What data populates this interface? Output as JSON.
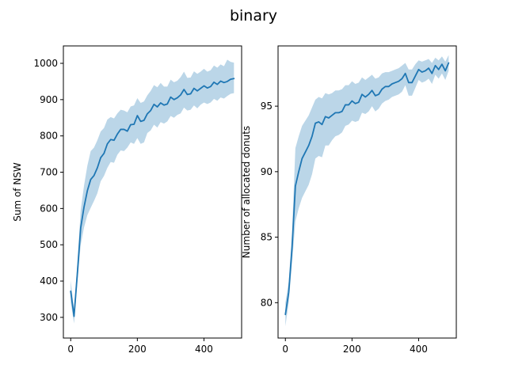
{
  "figure": {
    "suptitle": "binary"
  },
  "chart_data": [
    {
      "type": "line",
      "title": "",
      "xlabel": "",
      "ylabel": "Sum of NSW",
      "xlim": [
        -22,
        513
      ],
      "ylim": [
        243,
        1048
      ],
      "xticks": [
        0,
        200,
        400
      ],
      "yticks": [
        300,
        400,
        500,
        600,
        700,
        800,
        900,
        1000
      ],
      "grid": false,
      "color": "#1f77b4",
      "band_color": "#1f77b4",
      "band_opacity": 0.3,
      "series": [
        {
          "x": [
            0,
            10,
            20,
            30,
            40,
            50,
            60,
            70,
            80,
            90,
            100,
            110,
            120,
            130,
            140,
            150,
            160,
            170,
            180,
            190,
            200,
            210,
            220,
            230,
            240,
            250,
            260,
            270,
            280,
            290,
            300,
            310,
            320,
            330,
            340,
            350,
            360,
            370,
            380,
            390,
            400,
            410,
            420,
            430,
            440,
            450,
            460,
            470,
            480,
            490
          ],
          "mean": [
            372,
            303,
            421,
            547,
            604,
            649,
            680,
            691,
            712,
            740,
            752,
            778,
            790,
            788,
            805,
            818,
            818,
            813,
            831,
            832,
            856,
            840,
            843,
            861,
            870,
            887,
            880,
            891,
            885,
            888,
            907,
            900,
            905,
            913,
            928,
            914,
            916,
            931,
            924,
            931,
            938,
            932,
            936,
            948,
            942,
            951,
            947,
            950,
            956,
            958
          ],
          "lower": [
            342,
            283,
            396,
            500,
            548,
            582,
            602,
            621,
            642,
            675,
            690,
            712,
            728,
            726,
            748,
            760,
            758,
            768,
            782,
            778,
            794,
            778,
            782,
            808,
            815,
            831,
            823,
            838,
            834,
            840,
            855,
            850,
            858,
            862,
            878,
            870,
            872,
            884,
            876,
            886,
            892,
            888,
            892,
            902,
            897,
            906,
            903,
            910,
            916,
            918
          ],
          "upper": [
            402,
            323,
            451,
            595,
            663,
            718,
            758,
            768,
            788,
            812,
            822,
            845,
            852,
            848,
            862,
            872,
            870,
            865,
            881,
            884,
            904,
            891,
            895,
            912,
            924,
            940,
            934,
            946,
            936,
            936,
            955,
            948,
            952,
            962,
            977,
            960,
            961,
            978,
            971,
            977,
            985,
            977,
            981,
            994,
            988,
            997,
            992,
            1010,
            1004,
            1002
          ]
        }
      ]
    },
    {
      "type": "line",
      "title": "",
      "xlabel": "",
      "ylabel": "Number of allocated donuts",
      "xlim": [
        -22,
        513
      ],
      "ylim": [
        77.3,
        99.6
      ],
      "xticks": [
        0,
        200,
        400
      ],
      "yticks": [
        80,
        85,
        90,
        95
      ],
      "grid": false,
      "color": "#1f77b4",
      "band_color": "#1f77b4",
      "band_opacity": 0.3,
      "series": [
        {
          "x": [
            0,
            10,
            20,
            30,
            40,
            50,
            60,
            70,
            80,
            90,
            100,
            110,
            120,
            130,
            140,
            150,
            160,
            170,
            180,
            190,
            200,
            210,
            220,
            230,
            240,
            250,
            260,
            270,
            280,
            290,
            300,
            310,
            320,
            330,
            340,
            350,
            360,
            370,
            380,
            390,
            400,
            410,
            420,
            430,
            440,
            450,
            460,
            470,
            480,
            490
          ],
          "mean": [
            79.1,
            80.8,
            84.2,
            88.9,
            90.0,
            91.0,
            91.5,
            92.0,
            92.7,
            93.7,
            93.8,
            93.6,
            94.2,
            94.1,
            94.3,
            94.5,
            94.5,
            94.6,
            95.1,
            95.1,
            95.4,
            95.2,
            95.3,
            95.9,
            95.7,
            95.9,
            96.2,
            95.8,
            95.9,
            96.3,
            96.5,
            96.5,
            96.7,
            96.8,
            96.9,
            97.1,
            97.5,
            96.8,
            96.8,
            97.3,
            97.8,
            97.6,
            97.7,
            97.9,
            97.5,
            98.1,
            97.8,
            98.2,
            97.7,
            98.3
          ],
          "lower": [
            78.2,
            80.0,
            83.0,
            86.2,
            87.2,
            88.0,
            88.5,
            89.0,
            89.8,
            91.0,
            91.2,
            91.1,
            92.0,
            92.0,
            92.4,
            92.7,
            92.8,
            93.0,
            93.5,
            93.6,
            93.9,
            93.8,
            93.9,
            94.5,
            94.4,
            94.6,
            95.0,
            94.6,
            94.8,
            95.2,
            95.4,
            95.5,
            95.7,
            95.8,
            95.9,
            96.1,
            96.6,
            95.8,
            95.8,
            96.4,
            97.0,
            96.8,
            96.9,
            97.1,
            96.7,
            97.4,
            97.1,
            97.5,
            97.0,
            97.7
          ],
          "upper": [
            80.0,
            81.6,
            85.4,
            91.8,
            92.7,
            93.5,
            93.9,
            94.3,
            94.9,
            95.5,
            95.7,
            95.6,
            96.0,
            95.9,
            96.0,
            96.2,
            96.2,
            96.3,
            96.6,
            96.6,
            96.9,
            96.7,
            96.8,
            97.2,
            97.0,
            97.2,
            97.4,
            97.1,
            97.2,
            97.5,
            97.6,
            97.6,
            97.7,
            97.8,
            97.9,
            98.1,
            98.3,
            97.8,
            97.8,
            98.2,
            98.5,
            98.4,
            98.5,
            98.6,
            98.3,
            98.7,
            98.5,
            98.8,
            98.4,
            98.9
          ]
        }
      ]
    }
  ]
}
